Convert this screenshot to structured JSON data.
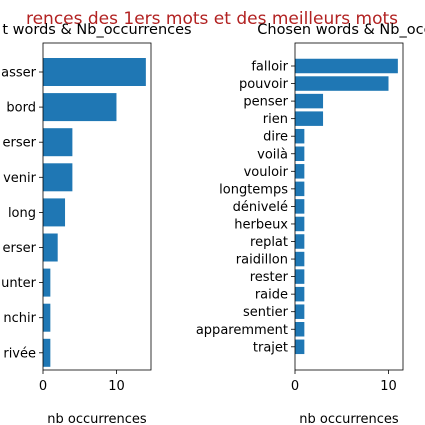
{
  "figure": {
    "suptitle": "rences des 1ers mots et des meilleurs mots",
    "suptitle_color": "#b22222"
  },
  "chart_data": [
    {
      "type": "bar",
      "orientation": "horizontal",
      "title": "t words & Nb_occurrences",
      "xlabel": "nb  occurrences",
      "ylabel": "",
      "xlim": [
        0,
        14.7
      ],
      "xticks": [
        0,
        10
      ],
      "color": "#1f77b4",
      "categories": [
        "asser",
        "bord",
        "erser",
        "venir",
        "long",
        "erser",
        "unter",
        "nchir",
        "rivée"
      ],
      "values": [
        14,
        10,
        4,
        4,
        3,
        2,
        1,
        1,
        1
      ]
    },
    {
      "type": "bar",
      "orientation": "horizontal",
      "title": "Chosen words & Nb_occu",
      "xlabel": "nb  occurrences",
      "ylabel": "",
      "xlim": [
        0,
        11.55
      ],
      "xticks": [
        0,
        10
      ],
      "color": "#1f77b4",
      "categories": [
        "falloir",
        "pouvoir",
        "penser",
        "rien",
        "dire",
        "voilà",
        "vouloir",
        "longtemps",
        "dénivelé",
        "herbeux",
        "replat",
        "raidillon",
        "rester",
        "raide",
        "sentier",
        "apparemment",
        "trajet"
      ],
      "values": [
        11,
        10,
        3,
        3,
        1,
        1,
        1,
        1,
        1,
        1,
        1,
        1,
        1,
        1,
        1,
        1,
        1
      ]
    }
  ]
}
